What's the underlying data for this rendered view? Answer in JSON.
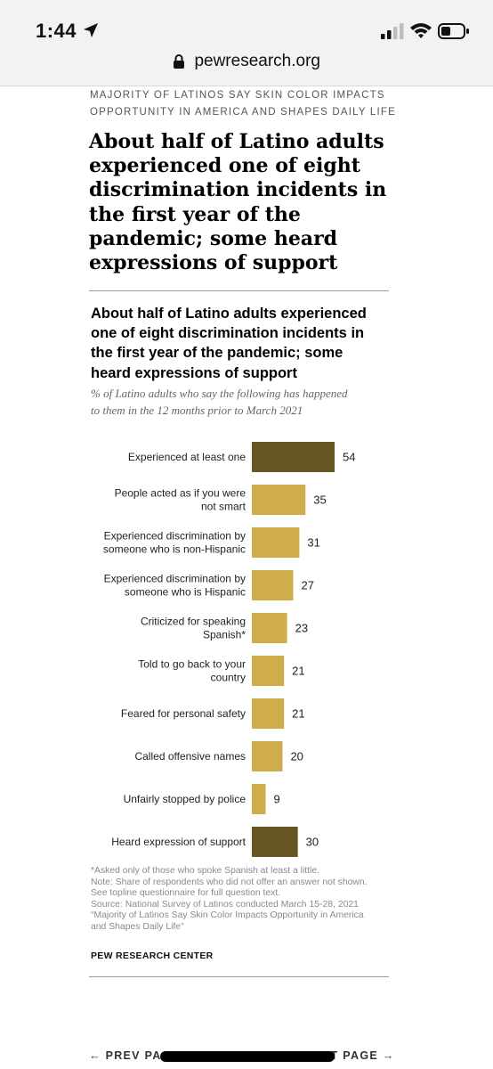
{
  "status_bar": {
    "time": "1:44",
    "url": "pewresearch.org",
    "icons": [
      "location-arrow-icon",
      "signal-icon",
      "wifi-icon",
      "battery-icon",
      "lock-icon"
    ]
  },
  "article": {
    "kicker_line1": "MAJORITY OF LATINOS SAY SKIN COLOR IMPACTS",
    "kicker_line2": "OPPORTUNITY IN AMERICA AND SHAPES DAILY LIFE",
    "headline_lines": [
      "About half of Latino adults",
      "experienced one of eight",
      "discrimination incidents in",
      "the first year of the",
      "pandemic; some heard",
      "expressions of support"
    ]
  },
  "chart_data": {
    "type": "bar",
    "orientation": "horizontal",
    "title_lines": [
      "About half of Latino adults experienced",
      "one of eight discrimination incidents in",
      "the first year of the pandemic; some",
      "heard expressions of support"
    ],
    "subtitle_lines": [
      "% of Latino adults who say the following has happened",
      "to them in the 12 months prior to March 2021"
    ],
    "categories": [
      [
        "Experienced at least one"
      ],
      [
        "People acted as if you were",
        "not smart"
      ],
      [
        "Experienced discrimination by",
        "someone who is non-Hispanic"
      ],
      [
        "Experienced discrimination by",
        "someone who is Hispanic"
      ],
      [
        "Criticized for speaking",
        "Spanish*"
      ],
      [
        "Told to go back to your",
        "country"
      ],
      [
        "Feared for personal safety"
      ],
      [
        "Called offensive names"
      ],
      [
        "Unfairly stopped by police"
      ],
      [
        "Heard expression of support"
      ]
    ],
    "values": [
      54,
      35,
      31,
      27,
      23,
      21,
      21,
      20,
      9,
      30
    ],
    "bar_colors": [
      "#655624",
      "#cfad4d",
      "#cfad4d",
      "#cfad4d",
      "#cfad4d",
      "#cfad4d",
      "#cfad4d",
      "#cfad4d",
      "#cfad4d",
      "#655624"
    ],
    "xlim": [
      0,
      54
    ],
    "grid": false,
    "legend": "none"
  },
  "notes": {
    "lines": [
      "*Asked only of those who spoke Spanish at least a little.",
      "Note: Share of respondents who did not offer an answer not shown.",
      "See topline questionnaire for full question text.",
      "Source: National Survey of Latinos conducted March 15-28, 2021",
      "“Majority of Latinos Say Skin Color Impacts Opportunity in America",
      "and Shapes Daily Life”"
    ],
    "source_org": "PEW RESEARCH CENTER"
  },
  "pagination": {
    "prev_label": "← PREV PAGE",
    "next_label": "NEXT PAGE →"
  }
}
